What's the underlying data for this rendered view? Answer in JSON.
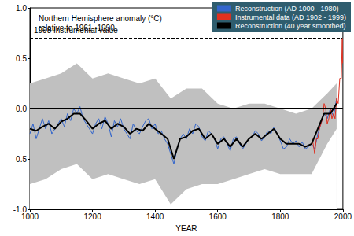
{
  "chart_data": {
    "type": "line",
    "ylabel": "Northern Hemisphere anomaly (°C)\nrelative to 1961 -1990",
    "xlabel": "YEAR",
    "xlim": [
      1000,
      2000
    ],
    "xticks": [
      1000,
      1200,
      1400,
      1600,
      1800,
      2000
    ],
    "ylim": [
      -1,
      1
    ],
    "yticks": [
      {
        "value": -1,
        "label": "-1.0"
      },
      {
        "value": -0.5,
        "label": "-0.5"
      },
      {
        "value": 0,
        "label": "0.0"
      },
      {
        "value": 0.5,
        "label": "0.5"
      },
      {
        "value": 1,
        "label": "1.0"
      }
    ],
    "grid": false,
    "legend": "top-right",
    "annotations": [
      {
        "text": "1998 Instrumental value",
        "x": [
          1000,
          1998
        ],
        "y": 0.7,
        "line_style": "dashed"
      }
    ],
    "reference_lines": [
      {
        "y": 0,
        "line_style": "solid"
      }
    ],
    "series": [
      {
        "type": "band",
        "color": "#c0c0c0",
        "x": [
          1000,
          1050,
          1100,
          1150,
          1200,
          1250,
          1300,
          1350,
          1400,
          1450,
          1500,
          1550,
          1600,
          1650,
          1700,
          1750,
          1800,
          1850,
          1900,
          1950,
          1980
        ],
        "upper": [
          0.25,
          0.3,
          0.35,
          0.45,
          0.3,
          0.35,
          0.3,
          0.25,
          0.3,
          0.1,
          0.2,
          0.2,
          0.05,
          0.0,
          0.05,
          0.05,
          0.0,
          -0.05,
          0.0,
          0.15,
          0.25
        ],
        "lower": [
          -0.75,
          -0.7,
          -0.6,
          -0.55,
          -0.7,
          -0.65,
          -0.7,
          -0.75,
          -0.7,
          -0.95,
          -0.8,
          -0.75,
          -0.75,
          -0.7,
          -0.65,
          -0.6,
          -0.65,
          -0.65,
          -0.65,
          -0.35,
          -0.2
        ]
      },
      {
        "name": "Reconstruction (AD 1000 - 1980)",
        "color": "#3366cc",
        "line_style": "solid",
        "x": [
          1000,
          1010,
          1020,
          1030,
          1040,
          1050,
          1060,
          1070,
          1080,
          1090,
          1100,
          1110,
          1120,
          1130,
          1140,
          1150,
          1160,
          1170,
          1180,
          1190,
          1200,
          1210,
          1220,
          1230,
          1240,
          1250,
          1260,
          1270,
          1280,
          1290,
          1300,
          1310,
          1320,
          1330,
          1340,
          1350,
          1360,
          1370,
          1380,
          1390,
          1400,
          1410,
          1420,
          1430,
          1440,
          1450,
          1460,
          1470,
          1480,
          1490,
          1500,
          1510,
          1520,
          1530,
          1540,
          1550,
          1560,
          1570,
          1580,
          1590,
          1600,
          1610,
          1620,
          1630,
          1640,
          1650,
          1660,
          1670,
          1680,
          1690,
          1700,
          1710,
          1720,
          1730,
          1740,
          1750,
          1760,
          1770,
          1780,
          1790,
          1800,
          1810,
          1820,
          1830,
          1840,
          1850,
          1860,
          1870,
          1880,
          1890,
          1900,
          1910,
          1920,
          1930,
          1940,
          1950,
          1960,
          1970,
          1980
        ],
        "values": [
          -0.25,
          -0.15,
          -0.3,
          -0.2,
          -0.1,
          -0.2,
          -0.12,
          -0.25,
          -0.2,
          -0.15,
          -0.1,
          -0.18,
          -0.05,
          -0.12,
          0.0,
          -0.05,
          0.02,
          -0.1,
          -0.15,
          -0.2,
          -0.25,
          -0.15,
          -0.1,
          -0.2,
          -0.08,
          -0.15,
          -0.28,
          -0.12,
          -0.18,
          -0.1,
          -0.2,
          -0.25,
          -0.3,
          -0.15,
          -0.22,
          -0.25,
          -0.18,
          -0.12,
          -0.1,
          -0.2,
          -0.15,
          -0.25,
          -0.22,
          -0.3,
          -0.35,
          -0.45,
          -0.55,
          -0.4,
          -0.3,
          -0.25,
          -0.3,
          -0.2,
          -0.25,
          -0.15,
          -0.18,
          -0.28,
          -0.32,
          -0.22,
          -0.25,
          -0.3,
          -0.4,
          -0.3,
          -0.28,
          -0.35,
          -0.42,
          -0.3,
          -0.28,
          -0.35,
          -0.4,
          -0.35,
          -0.3,
          -0.28,
          -0.22,
          -0.25,
          -0.32,
          -0.28,
          -0.22,
          -0.25,
          -0.18,
          -0.25,
          -0.32,
          -0.4,
          -0.38,
          -0.3,
          -0.35,
          -0.32,
          -0.38,
          -0.33,
          -0.4,
          -0.38,
          -0.35,
          -0.4,
          -0.25,
          -0.15,
          -0.05,
          -0.1,
          0.0,
          -0.08,
          0.1
        ]
      },
      {
        "name": "Instrumental data (AD 1902 - 1999)",
        "color": "#e03020",
        "line_style": "solid",
        "x": [
          1902,
          1905,
          1910,
          1915,
          1920,
          1925,
          1930,
          1935,
          1940,
          1945,
          1950,
          1955,
          1960,
          1965,
          1970,
          1975,
          1980,
          1985,
          1990,
          1995,
          1998,
          1999
        ],
        "values": [
          -0.3,
          -0.35,
          -0.45,
          -0.3,
          -0.3,
          -0.2,
          -0.15,
          -0.1,
          0.05,
          0.0,
          -0.15,
          -0.1,
          0.0,
          -0.1,
          -0.05,
          -0.1,
          0.1,
          0.05,
          0.3,
          0.3,
          0.7,
          0.45
        ]
      },
      {
        "name": "Reconstruction (40 year smoothed)",
        "color": "#000000",
        "line_style": "thick",
        "x": [
          1000,
          1020,
          1040,
          1060,
          1080,
          1100,
          1120,
          1140,
          1160,
          1180,
          1200,
          1220,
          1240,
          1260,
          1280,
          1300,
          1320,
          1340,
          1360,
          1380,
          1400,
          1420,
          1440,
          1460,
          1480,
          1500,
          1520,
          1540,
          1560,
          1580,
          1600,
          1620,
          1640,
          1660,
          1680,
          1700,
          1720,
          1740,
          1760,
          1780,
          1800,
          1820,
          1840,
          1860,
          1880,
          1900,
          1920,
          1940,
          1960,
          1980
        ],
        "values": [
          -0.2,
          -0.22,
          -0.18,
          -0.15,
          -0.2,
          -0.13,
          -0.1,
          -0.05,
          -0.05,
          -0.12,
          -0.2,
          -0.15,
          -0.12,
          -0.2,
          -0.15,
          -0.18,
          -0.25,
          -0.2,
          -0.22,
          -0.15,
          -0.2,
          -0.25,
          -0.3,
          -0.5,
          -0.3,
          -0.28,
          -0.22,
          -0.2,
          -0.3,
          -0.25,
          -0.35,
          -0.3,
          -0.38,
          -0.3,
          -0.38,
          -0.3,
          -0.25,
          -0.3,
          -0.25,
          -0.2,
          -0.3,
          -0.35,
          -0.35,
          -0.35,
          -0.38,
          -0.35,
          -0.2,
          -0.05,
          -0.05,
          0.05
        ]
      }
    ]
  }
}
